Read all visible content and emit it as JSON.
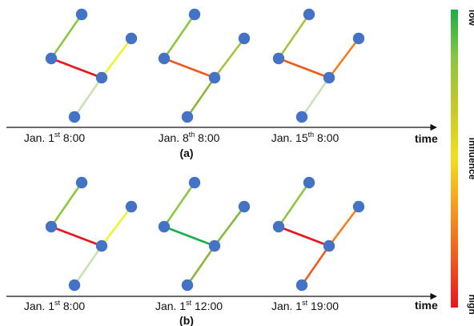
{
  "timeline_label": "time",
  "colorbar": {
    "title": "influence",
    "top_label": "low",
    "bottom_label": "high",
    "colors": [
      "#1aae4a",
      "#8dc63f",
      "#c6c92a",
      "#f2de1e",
      "#f59a1f",
      "#f05a1e",
      "#e8141e"
    ]
  },
  "node_color": "#4472c4",
  "rows": [
    {
      "label": "(a)",
      "snapshots": [
        {
          "date_prefix": "Jan. 1",
          "date_suffix": "st",
          "time": "8:00",
          "edges": [
            [
              "A",
              "C",
              "#8dc63f"
            ],
            [
              "C",
              "D",
              "#e8141e"
            ],
            [
              "D",
              "B",
              "#f2f22a"
            ],
            [
              "D",
              "E",
              "#c9e3b4"
            ]
          ]
        },
        {
          "date_prefix": "Jan. 8",
          "date_suffix": "th",
          "time": "8:00",
          "edges": [
            [
              "A",
              "C",
              "#8dc63f"
            ],
            [
              "C",
              "D",
              "#f05a1e"
            ],
            [
              "D",
              "B",
              "#a8c23a"
            ],
            [
              "D",
              "E",
              "#8fb43a"
            ]
          ]
        },
        {
          "date_prefix": "Jan. 15",
          "date_suffix": "th",
          "time": "8:00",
          "edges": [
            [
              "A",
              "C",
              "#a8c23a"
            ],
            [
              "C",
              "D",
              "#f05a1e"
            ],
            [
              "D",
              "B",
              "#f57d1e"
            ],
            [
              "D",
              "E",
              "#c9e3b4"
            ]
          ]
        }
      ]
    },
    {
      "label": "(b)",
      "snapshots": [
        {
          "date_prefix": "Jan. 1",
          "date_suffix": "st",
          "time": "8:00",
          "edges": [
            [
              "A",
              "C",
              "#8dc63f"
            ],
            [
              "C",
              "D",
              "#e8141e"
            ],
            [
              "D",
              "B",
              "#f2f22a"
            ],
            [
              "D",
              "E",
              "#c9e3b4"
            ]
          ]
        },
        {
          "date_prefix": "Jan. 1",
          "date_suffix": "st",
          "time": "12:00",
          "edges": [
            [
              "A",
              "C",
              "#8dc63f"
            ],
            [
              "C",
              "D",
              "#1aae4a"
            ],
            [
              "D",
              "B",
              "#7fba3a"
            ],
            [
              "D",
              "E",
              "#8fb43a"
            ]
          ]
        },
        {
          "date_prefix": "Jan. 1",
          "date_suffix": "st",
          "time": "19:00",
          "edges": [
            [
              "A",
              "C",
              "#8dc63f"
            ],
            [
              "C",
              "D",
              "#e8141e"
            ],
            [
              "D",
              "B",
              "#f57d1e"
            ],
            [
              "D",
              "E",
              "#f05a1e"
            ]
          ]
        }
      ]
    }
  ]
}
